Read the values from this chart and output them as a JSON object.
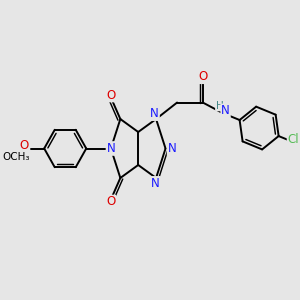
{
  "background_color": "#e6e6e6",
  "bond_color": "#000000",
  "atom_colors": {
    "N": "#1a1aff",
    "O": "#dd0000",
    "Cl": "#55bb55",
    "H": "#448888",
    "C": "#000000"
  },
  "figsize": [
    3.0,
    3.0
  ],
  "dpi": 100
}
